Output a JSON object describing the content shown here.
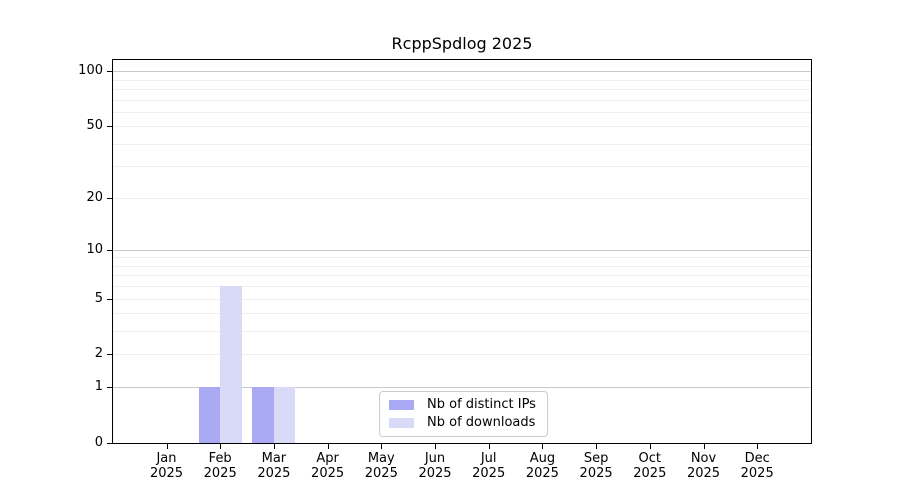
{
  "chart_data": {
    "type": "bar",
    "title": "RcppSpdlog 2025",
    "year_label": "2025",
    "months": [
      "Jan",
      "Feb",
      "Mar",
      "Apr",
      "May",
      "Jun",
      "Jul",
      "Aug",
      "Sep",
      "Oct",
      "Nov",
      "Dec"
    ],
    "series": [
      {
        "name": "Nb of distinct IPs",
        "color": "#a9a9f4",
        "values": [
          0,
          1,
          1,
          0,
          0,
          0,
          0,
          0,
          0,
          0,
          0,
          0
        ]
      },
      {
        "name": "Nb of downloads",
        "color": "#d9d9f8",
        "values": [
          0,
          6,
          1,
          0,
          0,
          0,
          0,
          0,
          0,
          0,
          0,
          0
        ]
      }
    ],
    "y_scale": "log1p",
    "y_ticks": [
      0,
      1,
      2,
      5,
      10,
      20,
      50,
      100
    ],
    "ylim": [
      0,
      115
    ],
    "grid_major": [
      1,
      10,
      100
    ],
    "grid_minor": [
      2,
      3,
      4,
      5,
      6,
      7,
      8,
      9,
      20,
      30,
      40,
      50,
      60,
      70,
      80,
      90
    ],
    "legend_position": "lower center"
  }
}
